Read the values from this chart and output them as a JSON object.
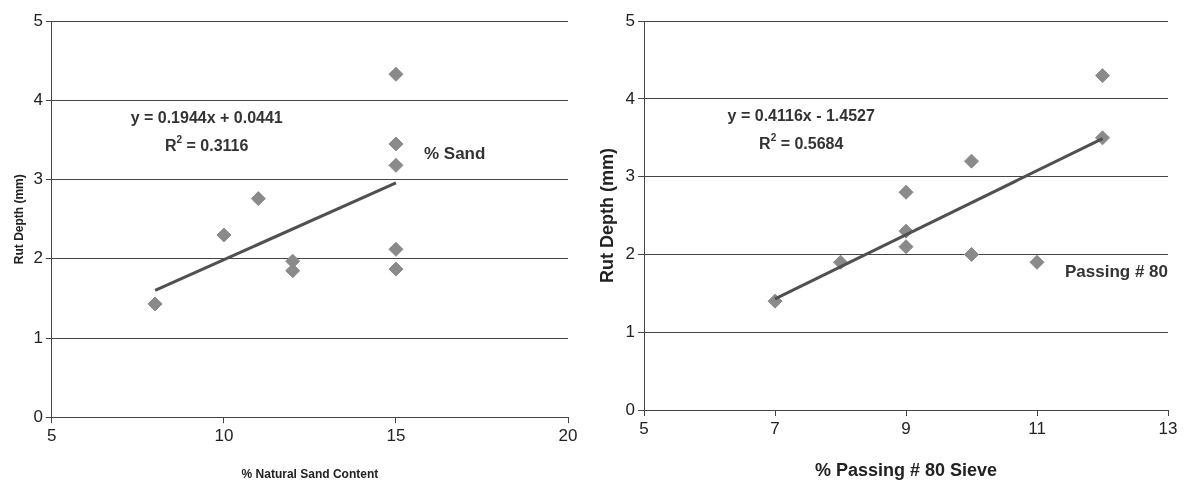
{
  "chart_data": [
    {
      "type": "scatter",
      "xlabel": "% Natural Sand Content",
      "ylabel": "Rut Depth (mm)",
      "xlim": [
        5,
        20
      ],
      "xticks": [
        5,
        10,
        15,
        20
      ],
      "ylim": [
        0,
        5
      ],
      "yticks": [
        0,
        1,
        2,
        3,
        4,
        5
      ],
      "grid": "y",
      "legend": false,
      "annotations": [
        "y = 0.1944x + 0.0441",
        "R$^{2}$ = 0.3116"
      ],
      "series": [
        {
          "name": "% Sand",
          "color": "#8a8a8a",
          "marker": "diamond",
          "x": [
            8,
            10,
            11,
            12,
            12,
            15,
            15,
            15,
            15,
            15
          ],
          "values": [
            1.43,
            2.3,
            2.76,
            1.97,
            1.85,
            4.33,
            3.18,
            2.12,
            1.87,
            3.45
          ]
        },
        {
          "type": "line",
          "color": "#505050",
          "x": [
            8,
            15
          ],
          "values": [
            1.6,
            2.96
          ]
        }
      ]
    },
    {
      "type": "scatter",
      "xlabel": "% Passing # 80 Sieve",
      "ylabel": "Rut Depth (mm)",
      "xlim": [
        5,
        13
      ],
      "xticks": [
        5,
        7,
        9,
        11,
        13
      ],
      "ylim": [
        0,
        5
      ],
      "yticks": [
        0,
        1,
        2,
        3,
        4,
        5
      ],
      "grid": "y",
      "legend": false,
      "annotations": [
        "y = 0.4116x - 1.4527",
        "R$^{2}$ = 0.5684"
      ],
      "series": [
        {
          "name": "Passing # 80",
          "color": "#8a8a8a",
          "marker": "diamond",
          "x": [
            7,
            8,
            9,
            9,
            9,
            10,
            10,
            12,
            12,
            11
          ],
          "values": [
            1.4,
            1.9,
            2.8,
            2.3,
            2.1,
            3.2,
            2.0,
            4.3,
            3.5,
            1.9
          ]
        },
        {
          "type": "line",
          "color": "#505050",
          "x": [
            7,
            12
          ],
          "values": [
            1.43,
            3.49
          ]
        }
      ]
    }
  ]
}
